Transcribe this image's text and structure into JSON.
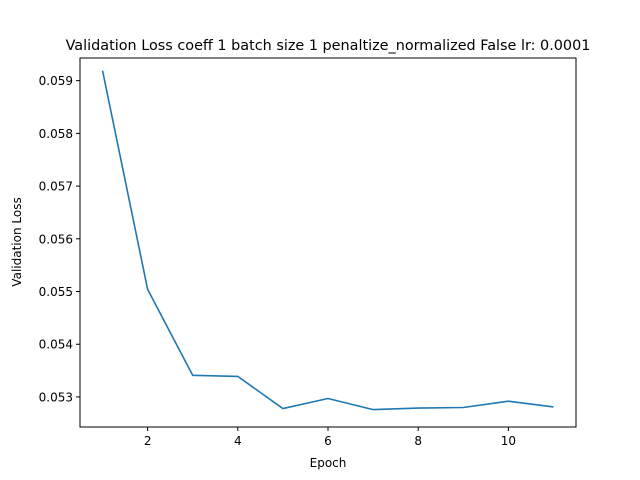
{
  "chart_data": {
    "type": "line",
    "title": "Validation Loss coeff 1 batch size 1 penaltize_normalized False lr: 0.0001",
    "xlabel": "Epoch",
    "ylabel": "Validation Loss",
    "xlim": [
      0.5,
      11.5
    ],
    "ylim": [
      0.05243,
      0.05943
    ],
    "xticks": [
      2,
      4,
      6,
      8,
      10
    ],
    "yticks": [
      0.053,
      0.054,
      0.055,
      0.056,
      0.057,
      0.058,
      0.059
    ],
    "grid": false,
    "legend": "none",
    "series": [
      {
        "color": "#1f77b4",
        "x": [
          1,
          2,
          3,
          4,
          5,
          6,
          7,
          8,
          9,
          10,
          11
        ],
        "y": [
          0.05919,
          0.05504,
          0.05341,
          0.05339,
          0.05278,
          0.05297,
          0.05276,
          0.05279,
          0.0528,
          0.05292,
          0.05281
        ]
      }
    ]
  }
}
